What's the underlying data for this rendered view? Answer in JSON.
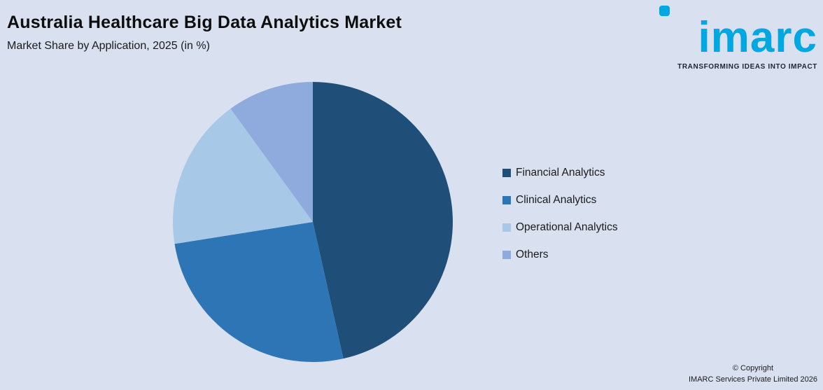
{
  "header": {
    "title": "Australia Healthcare Big Data Analytics Market",
    "subtitle": "Market Share by Application, 2025 (in %)"
  },
  "logo": {
    "wordmark": "imarc",
    "tagline": "TRANSFORMING IDEAS INTO IMPACT",
    "brand_color": "#00a7e1"
  },
  "chart_data": {
    "type": "pie",
    "title": "Australia Healthcare Big Data Analytics Market — Market Share by Application, 2025 (in %)",
    "categories": [
      "Financial Analytics",
      "Clinical Analytics",
      "Operational Analytics",
      "Others"
    ],
    "values": [
      46.5,
      26,
      17.5,
      10
    ],
    "colors": [
      "#1f4e79",
      "#2e75b6",
      "#a8c8e8",
      "#8faadc"
    ],
    "start_angle_deg": -90,
    "direction": "clockwise",
    "legend_position": "right",
    "data_labels": false,
    "background_color": "#d9e1f0"
  },
  "footer": {
    "copyright_line1": "© Copyright",
    "copyright_line2": "IMARC Services Private Limited 2026"
  }
}
